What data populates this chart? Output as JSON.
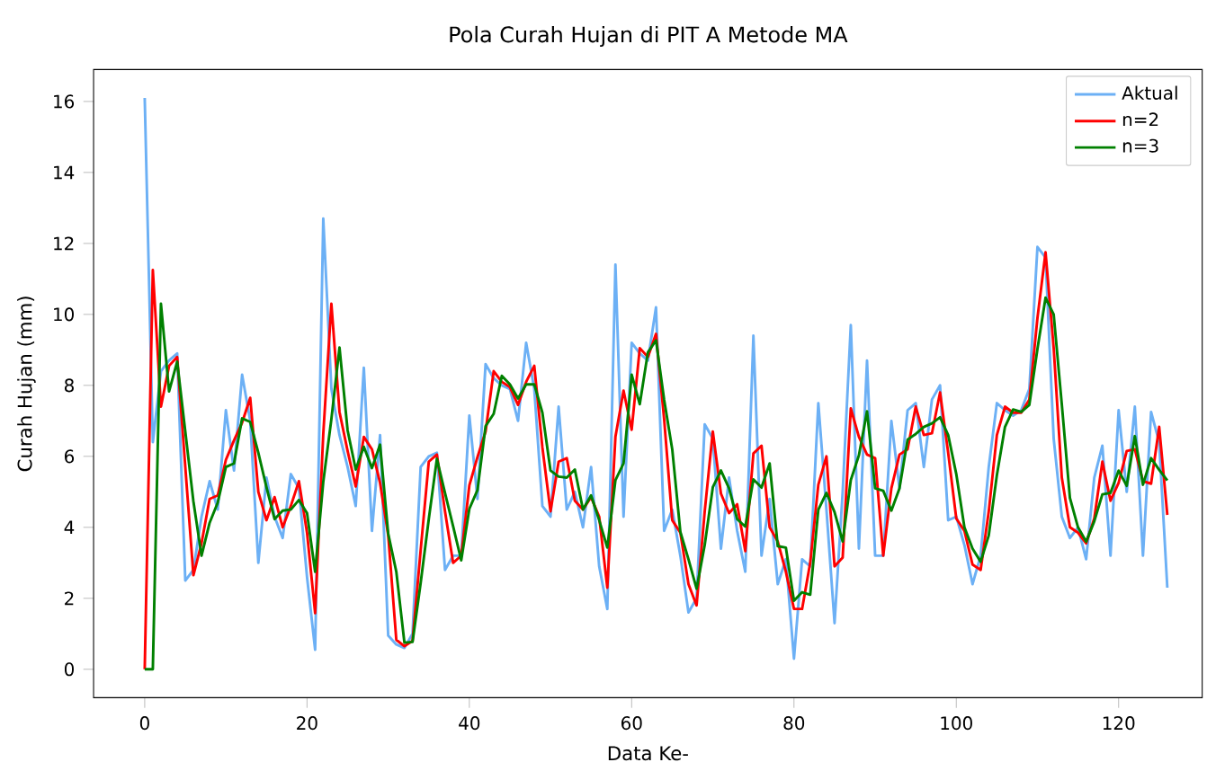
{
  "chart_data": {
    "type": "line",
    "title": "Pola Curah Hujan di PIT A Metode MA",
    "xlabel": "Data Ke-",
    "ylabel": "Curah Hujan (mm)",
    "legend": "top right",
    "xlim": [
      -6.3,
      130.3
    ],
    "ylim": [
      -0.8,
      16.9
    ],
    "xticks": [
      0,
      20,
      40,
      60,
      80,
      100,
      120
    ],
    "yticks": [
      0,
      2,
      4,
      6,
      8,
      10,
      12,
      14,
      16
    ],
    "x": [
      0,
      1,
      2,
      3,
      4,
      5,
      6,
      7,
      8,
      9,
      10,
      11,
      12,
      13,
      14,
      15,
      16,
      17,
      18,
      19,
      20,
      21,
      22,
      23,
      24,
      25,
      26,
      27,
      28,
      29,
      30,
      31,
      32,
      33,
      34,
      35,
      36,
      37,
      38,
      39,
      40,
      41,
      42,
      43,
      44,
      45,
      46,
      47,
      48,
      49,
      50,
      51,
      52,
      53,
      54,
      55,
      56,
      57,
      58,
      59,
      60,
      61,
      62,
      63,
      64,
      65,
      66,
      67,
      68,
      69,
      70,
      71,
      72,
      73,
      74,
      75,
      76,
      77,
      78,
      79,
      80,
      81,
      82,
      83,
      84,
      85,
      86,
      87,
      88,
      89,
      90,
      91,
      92,
      93,
      94,
      95,
      96,
      97,
      98,
      99,
      100,
      101,
      102,
      103,
      104,
      105,
      106,
      107,
      108,
      109,
      110,
      111,
      112,
      113,
      114,
      115,
      116,
      117,
      118,
      119,
      120,
      121,
      122,
      123,
      124,
      125,
      126
    ],
    "series": [
      {
        "name": "Aktual",
        "color": "#6cb0f5",
        "values": [
          16.1,
          6.4,
          8.4,
          8.7,
          8.9,
          2.5,
          2.8,
          4.3,
          5.3,
          4.5,
          7.3,
          5.6,
          8.3,
          7.0,
          3.0,
          5.4,
          4.3,
          3.7,
          5.5,
          5.1,
          2.6,
          0.55,
          12.7,
          7.9,
          6.6,
          5.7,
          4.6,
          8.5,
          3.9,
          6.6,
          0.95,
          0.7,
          0.6,
          1.0,
          5.7,
          6.0,
          6.1,
          2.8,
          3.2,
          3.2,
          7.15,
          4.8,
          8.6,
          8.2,
          8.0,
          7.9,
          7.0,
          9.2,
          7.9,
          4.6,
          4.3,
          7.4,
          4.5,
          5.0,
          4.0,
          5.7,
          2.9,
          1.7,
          11.4,
          4.3,
          9.2,
          8.9,
          8.7,
          10.2,
          3.9,
          4.5,
          3.2,
          1.6,
          2.0,
          6.9,
          6.5,
          3.4,
          5.4,
          3.9,
          2.75,
          9.4,
          3.2,
          4.8,
          2.4,
          3.1,
          0.3,
          3.1,
          2.9,
          7.5,
          4.5,
          1.3,
          5.0,
          9.7,
          3.4,
          8.7,
          3.2,
          3.2,
          7.0,
          5.1,
          7.3,
          7.5,
          5.7,
          7.6,
          8.0,
          4.2,
          4.3,
          3.5,
          2.4,
          3.2,
          5.7,
          7.5,
          7.3,
          7.15,
          7.3,
          7.9,
          11.9,
          11.6,
          6.5,
          4.3,
          3.7,
          4.0,
          3.1,
          5.4,
          6.3,
          3.2,
          7.3,
          5.0,
          7.4,
          3.2,
          7.25,
          6.4,
          2.3
        ]
      },
      {
        "name": "n=2",
        "color": "#ff0000",
        "values": [
          0,
          11.25,
          7.4,
          8.55,
          8.8,
          5.7,
          2.65,
          3.55,
          4.8,
          4.9,
          5.9,
          6.45,
          6.95,
          7.65,
          5.0,
          4.2,
          4.85,
          4.0,
          4.6,
          5.3,
          3.85,
          1.58,
          6.63,
          10.3,
          7.25,
          6.15,
          5.15,
          6.55,
          6.2,
          5.25,
          3.78,
          0.83,
          0.65,
          0.8,
          3.35,
          5.85,
          6.05,
          4.45,
          3.0,
          3.2,
          5.18,
          5.98,
          6.7,
          8.4,
          8.1,
          7.95,
          7.45,
          8.1,
          8.55,
          6.25,
          4.45,
          5.85,
          5.95,
          4.75,
          4.5,
          4.85,
          4.3,
          2.3,
          6.55,
          7.85,
          6.75,
          9.05,
          8.8,
          9.45,
          7.05,
          4.2,
          3.85,
          2.4,
          1.8,
          4.45,
          6.7,
          4.95,
          4.4,
          4.65,
          3.33,
          6.08,
          6.3,
          4.0,
          3.6,
          2.75,
          1.7,
          1.7,
          3.0,
          5.2,
          6.0,
          2.9,
          3.15,
          7.35,
          6.55,
          6.05,
          5.95,
          3.2,
          5.1,
          6.05,
          6.2,
          7.4,
          6.6,
          6.65,
          7.8,
          6.1,
          4.25,
          3.9,
          2.95,
          2.8,
          4.45,
          6.6,
          7.4,
          7.23,
          7.23,
          7.6,
          9.9,
          11.75,
          9.05,
          5.4,
          4.0,
          3.85,
          3.55,
          4.25,
          5.85,
          4.75,
          5.25,
          6.15,
          6.2,
          5.3,
          5.23,
          6.83,
          4.35
        ]
      },
      {
        "name": "n=3",
        "color": "#008000",
        "values": [
          0,
          0,
          10.3,
          7.83,
          8.67,
          6.7,
          4.73,
          3.2,
          4.13,
          4.7,
          5.7,
          5.8,
          7.07,
          6.97,
          6.1,
          5.13,
          4.23,
          4.47,
          4.5,
          4.77,
          4.4,
          2.75,
          5.28,
          7.05,
          9.07,
          6.73,
          5.63,
          6.27,
          5.67,
          6.33,
          3.82,
          2.75,
          0.75,
          0.77,
          2.43,
          4.23,
          5.93,
          4.97,
          4.03,
          3.07,
          4.52,
          5.05,
          6.85,
          7.2,
          8.27,
          8.03,
          7.63,
          8.03,
          8.03,
          7.23,
          5.6,
          5.43,
          5.4,
          5.63,
          4.5,
          4.9,
          4.2,
          3.43,
          5.33,
          5.8,
          8.3,
          7.47,
          8.93,
          9.27,
          7.6,
          6.2,
          3.87,
          3.1,
          2.27,
          3.5,
          5.13,
          5.6,
          5.1,
          4.23,
          4.02,
          5.35,
          5.12,
          5.8,
          3.47,
          3.43,
          1.93,
          2.17,
          2.1,
          4.5,
          4.97,
          4.43,
          3.6,
          5.33,
          6.03,
          7.27,
          5.1,
          5.03,
          4.47,
          5.1,
          6.47,
          6.63,
          6.83,
          6.93,
          7.1,
          6.6,
          5.5,
          4.0,
          3.4,
          3.03,
          3.77,
          5.47,
          6.83,
          7.32,
          7.25,
          7.45,
          9.03,
          10.47,
          10.0,
          7.47,
          4.83,
          4.0,
          3.6,
          4.17,
          4.93,
          4.97,
          5.6,
          5.17,
          6.57,
          5.2,
          5.95,
          5.62,
          5.32
        ]
      }
    ]
  }
}
